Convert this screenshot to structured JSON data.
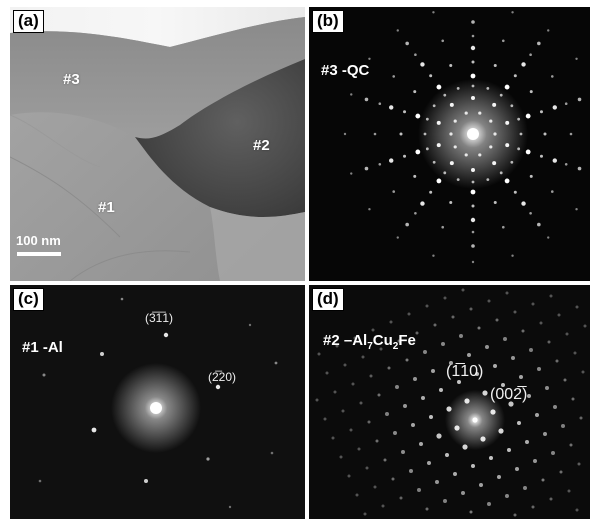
{
  "panels": {
    "a": {
      "letter": "(a)",
      "regions": [
        "#3",
        "#2",
        "#1"
      ],
      "scale_bar": "100 nm"
    },
    "b": {
      "letter": "(b)",
      "label": "#3 -QC"
    },
    "c": {
      "letter": "(c)",
      "label": "#1 -Al",
      "reflections": [
        {
          "open": "(",
          "bar": "31",
          "digits_over": "311",
          "text": "(3̅1̅1)"
        },
        {
          "text": "(2̅20)"
        }
      ]
    },
    "d": {
      "letter": "(d)",
      "label_prefix": "#2 –Al",
      "sub1": "7",
      "mid": "Cu",
      "sub2": "2",
      "suffix": "Fe",
      "reflections": [
        {
          "text": "(1̅10)"
        },
        {
          "text": "(002̅)"
        }
      ]
    }
  }
}
